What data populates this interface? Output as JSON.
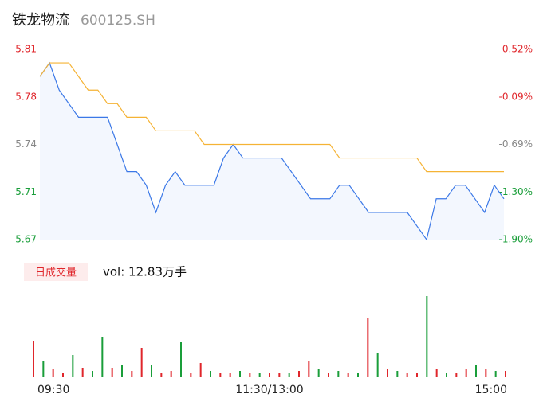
{
  "header": {
    "title": "铁龙物流",
    "code": "600125.SH"
  },
  "chart_data": [
    {
      "type": "line",
      "x": [
        0,
        5,
        10,
        15,
        20,
        25,
        30,
        35,
        40,
        45,
        50,
        55,
        60,
        65,
        70,
        75,
        80,
        85,
        90,
        95,
        100,
        105,
        110,
        115,
        120,
        125,
        130,
        135,
        140,
        145,
        150,
        155,
        160,
        165,
        170,
        175,
        180,
        185,
        190,
        195,
        200,
        205,
        210,
        215,
        220,
        225,
        230,
        235,
        240
      ],
      "xlim": [
        0,
        240
      ],
      "series": [
        {
          "color": "#3b78e7",
          "values": [
            5.79,
            5.8,
            5.78,
            5.77,
            5.76,
            5.76,
            5.76,
            5.76,
            5.74,
            5.72,
            5.72,
            5.71,
            5.69,
            5.71,
            5.72,
            5.71,
            5.71,
            5.71,
            5.71,
            5.73,
            5.74,
            5.73,
            5.73,
            5.73,
            5.73,
            5.73,
            5.72,
            5.71,
            5.7,
            5.7,
            5.7,
            5.71,
            5.71,
            5.7,
            5.69,
            5.69,
            5.69,
            5.69,
            5.69,
            5.68,
            5.67,
            5.7,
            5.7,
            5.71,
            5.71,
            5.7,
            5.69,
            5.71,
            5.7
          ]
        },
        {
          "color": "#f5b335",
          "values": [
            5.79,
            5.8,
            5.8,
            5.8,
            5.79,
            5.78,
            5.78,
            5.77,
            5.77,
            5.76,
            5.76,
            5.76,
            5.75,
            5.75,
            5.75,
            5.75,
            5.75,
            5.74,
            5.74,
            5.74,
            5.74,
            5.74,
            5.74,
            5.74,
            5.74,
            5.74,
            5.74,
            5.74,
            5.74,
            5.74,
            5.74,
            5.73,
            5.73,
            5.73,
            5.73,
            5.73,
            5.73,
            5.73,
            5.73,
            5.73,
            5.72,
            5.72,
            5.72,
            5.72,
            5.72,
            5.72,
            5.72,
            5.72,
            5.72
          ]
        }
      ],
      "area_color": "#f3f7fe",
      "ylim": [
        5.67,
        5.81
      ],
      "yticks": [
        {
          "value": 5.81,
          "label": "5.81"
        },
        {
          "value": 5.775,
          "label": "5.78"
        },
        {
          "value": 5.74,
          "label": "5.74"
        },
        {
          "value": 5.705,
          "label": "5.71"
        },
        {
          "value": 5.67,
          "label": "5.67"
        }
      ],
      "y2lim": [
        -1.9,
        0.52
      ],
      "y2ticks": [
        {
          "value": 0.52,
          "label": "0.52%"
        },
        {
          "value": -0.09,
          "label": "-0.09%"
        },
        {
          "value": -0.69,
          "label": "-0.69%"
        },
        {
          "value": -1.3,
          "label": "-1.30%"
        },
        {
          "value": -1.9,
          "label": "-1.90%"
        }
      ],
      "tick_colors": [
        "#e0262b",
        "#e0262b",
        "#888888",
        "#1a9e3a",
        "#1a9e3a"
      ]
    },
    {
      "type": "bar",
      "legend": "日成交量",
      "volume_label": "vol: 12.83万手",
      "x": [
        0,
        5,
        10,
        15,
        20,
        25,
        30,
        35,
        40,
        45,
        50,
        55,
        60,
        65,
        70,
        75,
        80,
        85,
        90,
        95,
        100,
        105,
        110,
        115,
        120,
        125,
        130,
        135,
        140,
        145,
        150,
        155,
        160,
        165,
        170,
        175,
        180,
        185,
        190,
        195,
        200,
        205,
        210,
        215,
        220,
        225,
        230,
        235,
        240
      ],
      "xlim": [
        0,
        240
      ],
      "values": [
        45,
        20,
        10,
        5,
        28,
        12,
        8,
        50,
        12,
        15,
        8,
        37,
        15,
        5,
        8,
        44,
        5,
        18,
        8,
        5,
        5,
        8,
        5,
        5,
        5,
        5,
        5,
        8,
        20,
        10,
        5,
        8,
        5,
        5,
        74,
        30,
        10,
        8,
        5,
        5,
        102,
        10,
        5,
        5,
        10,
        15,
        10,
        8,
        8
      ],
      "colors": [
        "#e0262b",
        "#1a9e3a",
        "#e0262b",
        "#e0262b",
        "#1a9e3a",
        "#e0262b",
        "#1a9e3a",
        "#1a9e3a",
        "#e0262b",
        "#1a9e3a",
        "#e0262b",
        "#e0262b",
        "#1a9e3a",
        "#e0262b",
        "#e0262b",
        "#1a9e3a",
        "#e0262b",
        "#e0262b",
        "#1a9e3a",
        "#e0262b",
        "#e0262b",
        "#1a9e3a",
        "#e0262b",
        "#1a9e3a",
        "#e0262b",
        "#e0262b",
        "#1a9e3a",
        "#e0262b",
        "#e0262b",
        "#1a9e3a",
        "#e0262b",
        "#1a9e3a",
        "#e0262b",
        "#1a9e3a",
        "#e0262b",
        "#1a9e3a",
        "#e0262b",
        "#1a9e3a",
        "#e0262b",
        "#e0262b",
        "#1a9e3a",
        "#e0262b",
        "#1a9e3a",
        "#e0262b",
        "#e0262b",
        "#1a9e3a",
        "#e0262b",
        "#1a9e3a",
        "#e0262b"
      ],
      "ylim": [
        0,
        102
      ],
      "xticks": [
        {
          "value": 0,
          "label": "09:30"
        },
        {
          "value": 120,
          "label": "11:30/13:00"
        },
        {
          "value": 240,
          "label": "15:00"
        }
      ]
    }
  ]
}
